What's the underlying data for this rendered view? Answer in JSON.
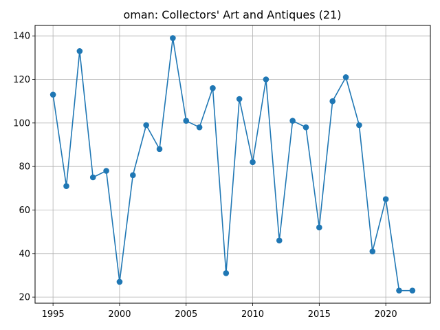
{
  "chart_data": {
    "type": "line",
    "title": "oman: Collectors' Art and Antiques (21)",
    "xlabel": "",
    "ylabel": "",
    "x": [
      1995,
      1996,
      1997,
      1998,
      1999,
      2000,
      2001,
      2002,
      2003,
      2004,
      2005,
      2006,
      2007,
      2008,
      2009,
      2010,
      2011,
      2012,
      2013,
      2014,
      2015,
      2016,
      2017,
      2018,
      2019,
      2020,
      2021,
      2022
    ],
    "series": [
      {
        "values": [
          113,
          71,
          133,
          75,
          78,
          27,
          76,
          99,
          88,
          139,
          101,
          98,
          116,
          31,
          111,
          82,
          120,
          46,
          101,
          98,
          52,
          110,
          121,
          99,
          41,
          65,
          23,
          23
        ],
        "color": "#1f77b4",
        "marker": "circle"
      }
    ],
    "xlim": [
      1993.65,
      2023.35
    ],
    "ylim": [
      17.2,
      144.8
    ],
    "xticks": [
      1995,
      2000,
      2005,
      2010,
      2015,
      2020
    ],
    "yticks": [
      20,
      40,
      60,
      80,
      100,
      120,
      140
    ],
    "grid": true,
    "legend": "none"
  }
}
